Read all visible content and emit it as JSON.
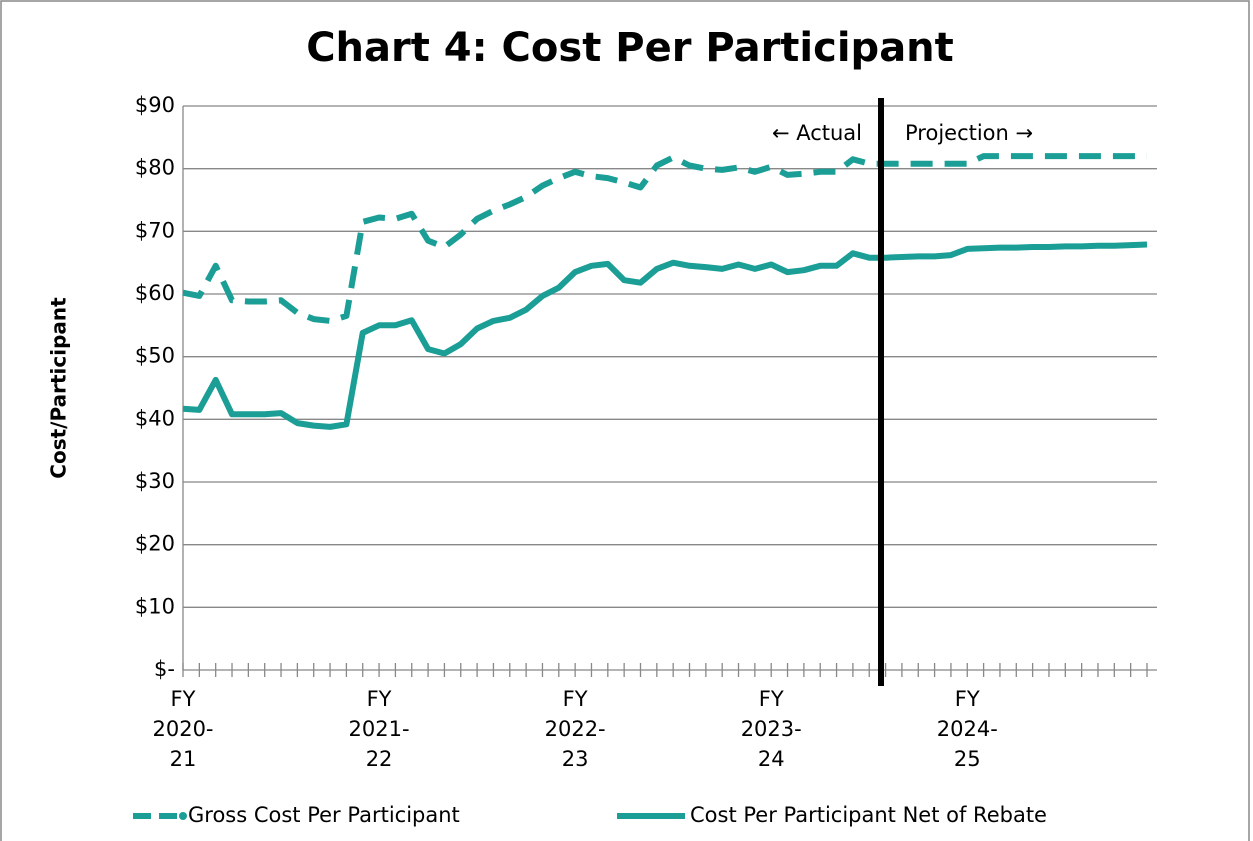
{
  "chart_data": {
    "type": "line",
    "title": "Chart 4: Cost Per Participant",
    "y_axis_title": "Cost/Participant",
    "annotations": [
      "← Actual",
      "Projection →"
    ],
    "categories": [
      "FY 2020-21",
      null,
      null,
      null,
      null,
      null,
      null,
      null,
      null,
      null,
      null,
      null,
      "FY 2021-22",
      null,
      null,
      null,
      null,
      null,
      null,
      null,
      null,
      null,
      null,
      null,
      "FY 2022-23",
      null,
      null,
      null,
      null,
      null,
      null,
      null,
      null,
      null,
      null,
      null,
      "FY 2023-24",
      null,
      null,
      null,
      null,
      null,
      null,
      null,
      null,
      null,
      null,
      null,
      "FY 2024-25",
      null,
      null,
      null,
      null,
      null,
      null,
      null,
      null,
      null,
      null,
      null
    ],
    "series": [
      {
        "name": "Gross Cost Per Participant",
        "color": "#1a9e96",
        "dash": true,
        "values": [
          60.2,
          59.7,
          64.5,
          59,
          58.8,
          58.8,
          59,
          57,
          56,
          55.7,
          56.5,
          71.5,
          72.2,
          72,
          72.8,
          68.5,
          67.5,
          69.5,
          72,
          73.3,
          74.3,
          75.5,
          77.3,
          78.5,
          79.5,
          78.8,
          78.5,
          77.8,
          77,
          80.5,
          81.8,
          80.5,
          80,
          79.8,
          80.2,
          79.5,
          80.3,
          79,
          79.2,
          79.5,
          79.5,
          81.5,
          80.8,
          80.8,
          80.8,
          80.8,
          80.8,
          80.8,
          80.8,
          82,
          82,
          82,
          82,
          82,
          82,
          82,
          82,
          82,
          82,
          82
        ]
      },
      {
        "name": "Cost Per Participant Net of Rebate",
        "color": "#1a9e96",
        "dash": false,
        "values": [
          41.7,
          41.5,
          46.3,
          40.8,
          40.8,
          40.8,
          41,
          39.4,
          39,
          38.8,
          39.2,
          53.8,
          55,
          55,
          55.8,
          51.2,
          50.5,
          52,
          54.5,
          55.7,
          56.2,
          57.5,
          59.7,
          61,
          63.5,
          64.5,
          64.8,
          62.2,
          61.8,
          64,
          65,
          64.5,
          64.3,
          64,
          64.7,
          64,
          64.7,
          63.5,
          63.8,
          64.5,
          64.5,
          66.5,
          65.8,
          65.8,
          65.9,
          66,
          66,
          66.2,
          67.2,
          67.3,
          67.4,
          67.4,
          67.5,
          67.5,
          67.6,
          67.6,
          67.7,
          67.7,
          67.8,
          67.9
        ]
      }
    ],
    "ylim": [
      0,
      90
    ],
    "yticks": [
      {
        "value": 0,
        "label": "$-"
      },
      {
        "value": 10,
        "label": "$10"
      },
      {
        "value": 20,
        "label": "$20"
      },
      {
        "value": 30,
        "label": "$30"
      },
      {
        "value": 40,
        "label": "$40"
      },
      {
        "value": 50,
        "label": "$50"
      },
      {
        "value": 60,
        "label": "$60"
      },
      {
        "value": 70,
        "label": "$70"
      },
      {
        "value": 80,
        "label": "$80"
      },
      {
        "value": 90,
        "label": "$90"
      }
    ],
    "grid": true
  }
}
